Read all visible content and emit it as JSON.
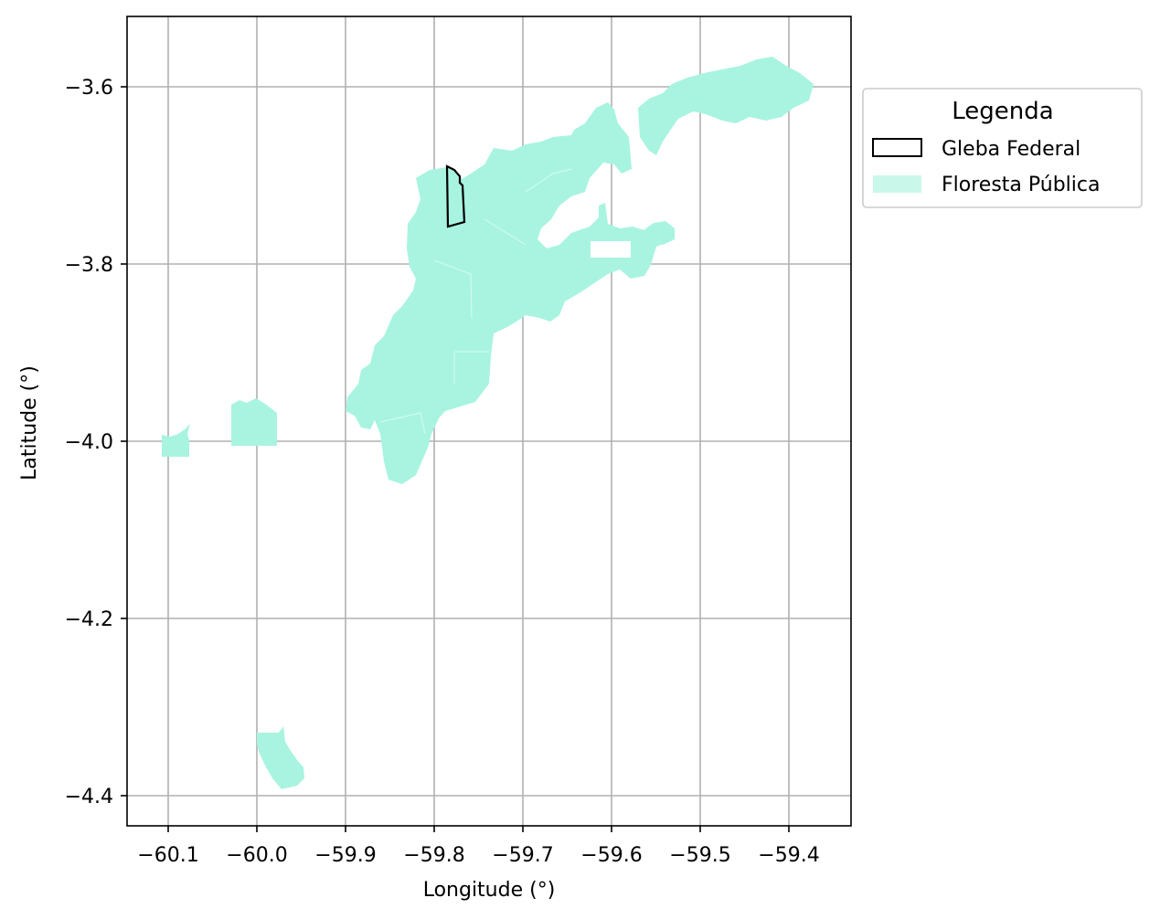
{
  "map": {
    "xlabel": "Longitude (°)",
    "ylabel": "Latitude (°)",
    "x_ticks": [
      "−60.1",
      "−60.0",
      "−59.9",
      "−59.8",
      "−59.7",
      "−59.6",
      "−59.5",
      "−59.4"
    ],
    "y_ticks": [
      "−3.6",
      "−3.8",
      "−4.0",
      "−4.2",
      "−4.4"
    ],
    "x_range": [
      -60.143,
      -59.328
    ],
    "y_range": [
      -4.434,
      -3.521
    ],
    "grid": true,
    "legend": {
      "title": "Legenda",
      "placement": "outside-right-top",
      "items": [
        {
          "label": "Gleba Federal",
          "style": "outline",
          "color": "#000000"
        },
        {
          "label": "Floresta Pública",
          "style": "fill",
          "color": "#a8f4e0"
        }
      ]
    },
    "colors": {
      "forest_fill": "#a8f4e0",
      "gleba_outline": "#000000",
      "grid": "#b0b0b0"
    }
  }
}
